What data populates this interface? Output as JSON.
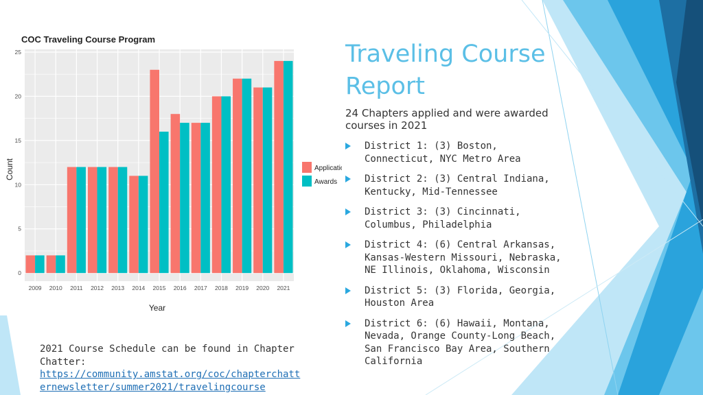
{
  "slide": {
    "title": "Traveling Course Report",
    "subtitle": "24 Chapters applied and were awarded courses in 2021",
    "districts": [
      "District 1: (3) Boston, Connecticut, NYC Metro Area",
      "District 2: (3) Central Indiana, Kentucky, Mid-Tennessee",
      "District 3: (3) Cincinnati, Columbus, Philadelphia",
      "District 4: (6) Central Arkansas, Kansas-Western Missouri, Nebraska, NE Illinois, Oklahoma, Wisconsin",
      "District 5: (3) Florida, Georgia, Houston Area",
      "District 6: (6) Hawaii, Montana, Nevada, Orange County-Long Beach, San Francisco Bay Area, Southern California"
    ],
    "footer_text": "2021 Course Schedule can be found in Chapter Chatter:",
    "footer_link": "https://community.amstat.org/coc/chapterchatternewsletter/summer2021/travelingcourse"
  },
  "colors": {
    "applications": "#f8766d",
    "awards": "#00bfc4",
    "title": "#5bbfe6",
    "panel": "#ebebeb",
    "grid": "#ffffff",
    "bullet": "#2aa8df"
  },
  "chart_data": {
    "type": "bar",
    "title": "COC Traveling Course Program",
    "xlabel": "Year",
    "ylabel": "Count",
    "categories": [
      "2009",
      "2010",
      "2011",
      "2012",
      "2013",
      "2014",
      "2015",
      "2016",
      "2017",
      "2018",
      "2019",
      "2020",
      "2021"
    ],
    "series": [
      {
        "name": "Applications",
        "values": [
          2,
          2,
          12,
          12,
          12,
          11,
          23,
          18,
          17,
          20,
          22,
          21,
          24
        ]
      },
      {
        "name": "Awards",
        "values": [
          2,
          2,
          12,
          12,
          12,
          11,
          16,
          17,
          17,
          20,
          22,
          21,
          24
        ]
      }
    ],
    "ylim": [
      0,
      25
    ],
    "yticks": [
      "0",
      "5",
      "10",
      "15",
      "20",
      "25"
    ],
    "grid": true,
    "legend": "right"
  }
}
